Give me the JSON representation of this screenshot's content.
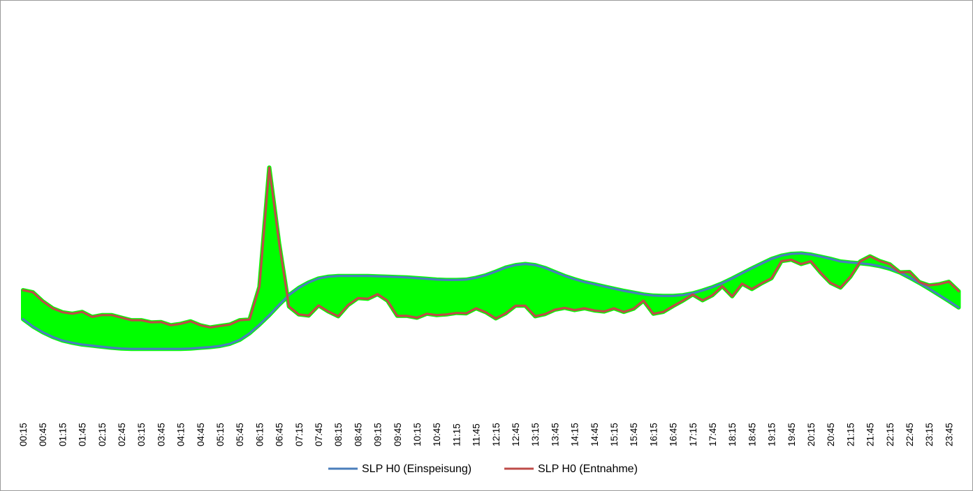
{
  "chart_data": {
    "type": "line",
    "title": "",
    "xlabel": "",
    "ylabel": "",
    "ylim": [
      0,
      1
    ],
    "grid": false,
    "legend_placement": "bottom",
    "fill_between": {
      "color": "#00FF00"
    },
    "categories": [
      "00:15",
      "00:30",
      "00:45",
      "01:00",
      "01:15",
      "01:30",
      "01:45",
      "02:00",
      "02:15",
      "02:30",
      "02:45",
      "03:00",
      "03:15",
      "03:30",
      "03:45",
      "04:00",
      "04:15",
      "04:30",
      "04:45",
      "05:00",
      "05:15",
      "05:30",
      "05:45",
      "06:00",
      "06:15",
      "06:30",
      "06:45",
      "07:00",
      "07:15",
      "07:30",
      "07:45",
      "08:00",
      "08:15",
      "08:30",
      "08:45",
      "09:00",
      "09:15",
      "09:30",
      "09:45",
      "10:00",
      "10:15",
      "10:30",
      "10:45",
      "11:00",
      "11:15",
      "11:30",
      "11:45",
      "12:00",
      "12:15",
      "12:30",
      "12:45",
      "13:00",
      "13:15",
      "13:30",
      "13:45",
      "14:00",
      "14:15",
      "14:30",
      "14:45",
      "15:00",
      "15:15",
      "15:30",
      "15:45",
      "16:00",
      "16:15",
      "16:30",
      "16:45",
      "17:00",
      "17:15",
      "17:30",
      "17:45",
      "18:00",
      "18:15",
      "18:30",
      "18:45",
      "19:00",
      "19:15",
      "19:30",
      "19:45",
      "20:00",
      "20:15",
      "20:30",
      "20:45",
      "21:00",
      "21:15",
      "21:30",
      "21:45",
      "22:00",
      "22:15",
      "22:30",
      "22:45",
      "23:00",
      "23:15",
      "23:30",
      "23:45",
      "00:00"
    ],
    "tick_labels": [
      "00:15",
      "00:45",
      "01:15",
      "01:45",
      "02:15",
      "02:45",
      "03:15",
      "03:45",
      "04:15",
      "04:45",
      "05:15",
      "05:45",
      "06:15",
      "06:45",
      "07:15",
      "07:45",
      "08:15",
      "08:45",
      "09:15",
      "09:45",
      "10:15",
      "10:45",
      "11:15",
      "11:45",
      "12:15",
      "12:45",
      "13:15",
      "13:45",
      "14:15",
      "14:45",
      "15:15",
      "15:45",
      "16:15",
      "16:45",
      "17:15",
      "17:45",
      "18:15",
      "18:45",
      "19:15",
      "19:45",
      "20:15",
      "20:45",
      "21:15",
      "21:45",
      "22:15",
      "22:45",
      "23:15",
      "23:45"
    ],
    "series": [
      {
        "name": "SLP H0 (Einspeisung)",
        "color": "#4A7EBB",
        "values": [
          0.197,
          0.177,
          0.161,
          0.148,
          0.138,
          0.132,
          0.127,
          0.124,
          0.121,
          0.118,
          0.116,
          0.115,
          0.115,
          0.115,
          0.115,
          0.115,
          0.115,
          0.116,
          0.118,
          0.12,
          0.123,
          0.129,
          0.14,
          0.158,
          0.182,
          0.208,
          0.237,
          0.263,
          0.283,
          0.298,
          0.309,
          0.314,
          0.316,
          0.316,
          0.316,
          0.316,
          0.315,
          0.314,
          0.313,
          0.312,
          0.31,
          0.308,
          0.306,
          0.305,
          0.305,
          0.306,
          0.311,
          0.318,
          0.328,
          0.339,
          0.346,
          0.349,
          0.346,
          0.338,
          0.327,
          0.316,
          0.307,
          0.299,
          0.293,
          0.287,
          0.281,
          0.275,
          0.27,
          0.265,
          0.262,
          0.261,
          0.261,
          0.263,
          0.268,
          0.276,
          0.285,
          0.296,
          0.309,
          0.323,
          0.337,
          0.35,
          0.363,
          0.372,
          0.377,
          0.378,
          0.375,
          0.369,
          0.363,
          0.356,
          0.353,
          0.351,
          0.348,
          0.343,
          0.336,
          0.326,
          0.312,
          0.297,
          0.281,
          0.264,
          0.247,
          0.229
        ]
      },
      {
        "name": "SLP H0 (Entnahme)",
        "color": "#BE4B48",
        "values": [
          0.277,
          0.271,
          0.246,
          0.227,
          0.216,
          0.212,
          0.217,
          0.203,
          0.208,
          0.208,
          0.201,
          0.194,
          0.194,
          0.188,
          0.189,
          0.18,
          0.184,
          0.191,
          0.18,
          0.174,
          0.178,
          0.182,
          0.194,
          0.196,
          0.286,
          0.615,
          0.406,
          0.232,
          0.21,
          0.207,
          0.235,
          0.218,
          0.205,
          0.236,
          0.255,
          0.253,
          0.266,
          0.248,
          0.206,
          0.206,
          0.201,
          0.212,
          0.208,
          0.21,
          0.214,
          0.213,
          0.227,
          0.216,
          0.199,
          0.213,
          0.234,
          0.234,
          0.205,
          0.211,
          0.223,
          0.228,
          0.222,
          0.227,
          0.221,
          0.218,
          0.227,
          0.217,
          0.226,
          0.248,
          0.212,
          0.217,
          0.233,
          0.248,
          0.265,
          0.249,
          0.263,
          0.288,
          0.26,
          0.295,
          0.28,
          0.296,
          0.31,
          0.357,
          0.361,
          0.349,
          0.357,
          0.325,
          0.297,
          0.284,
          0.314,
          0.356,
          0.37,
          0.357,
          0.348,
          0.326,
          0.327,
          0.299,
          0.29,
          0.293,
          0.3,
          0.274
        ]
      }
    ]
  }
}
